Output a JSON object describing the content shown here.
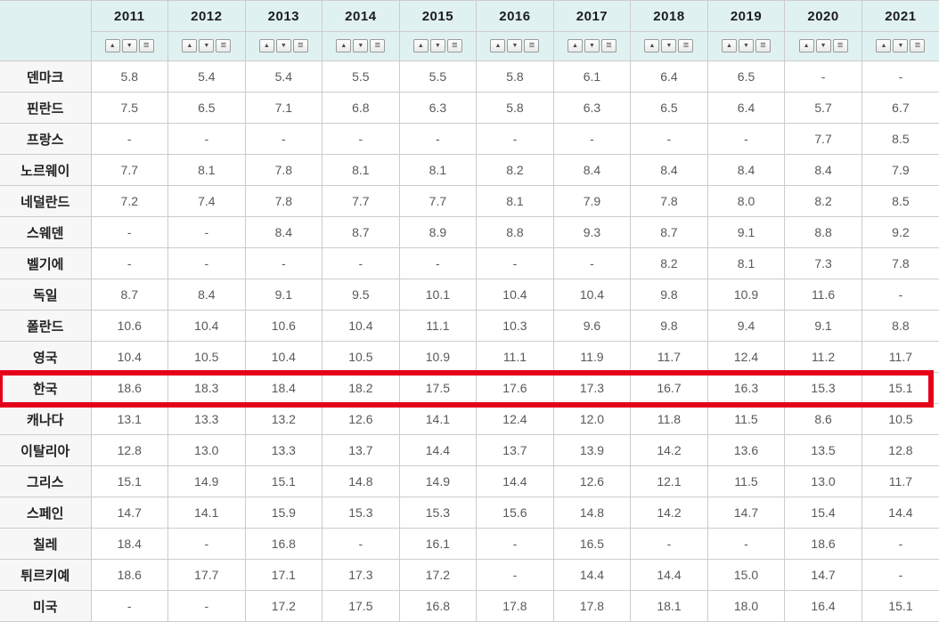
{
  "table": {
    "years": [
      "2011",
      "2012",
      "2013",
      "2014",
      "2015",
      "2016",
      "2017",
      "2018",
      "2019",
      "2020",
      "2021"
    ],
    "sort_controls": {
      "asc_icon": "▲",
      "desc_icon": "▼",
      "menu_icon": "≡"
    },
    "rows": [
      {
        "label": "덴마크",
        "values": [
          "5.8",
          "5.4",
          "5.4",
          "5.5",
          "5.5",
          "5.8",
          "6.1",
          "6.4",
          "6.5",
          "-",
          "-"
        ]
      },
      {
        "label": "핀란드",
        "values": [
          "7.5",
          "6.5",
          "7.1",
          "6.8",
          "6.3",
          "5.8",
          "6.3",
          "6.5",
          "6.4",
          "5.7",
          "6.7"
        ]
      },
      {
        "label": "프랑스",
        "values": [
          "-",
          "-",
          "-",
          "-",
          "-",
          "-",
          "-",
          "-",
          "-",
          "7.7",
          "8.5"
        ]
      },
      {
        "label": "노르웨이",
        "values": [
          "7.7",
          "8.1",
          "7.8",
          "8.1",
          "8.1",
          "8.2",
          "8.4",
          "8.4",
          "8.4",
          "8.4",
          "7.9"
        ]
      },
      {
        "label": "네덜란드",
        "values": [
          "7.2",
          "7.4",
          "7.8",
          "7.7",
          "7.7",
          "8.1",
          "7.9",
          "7.8",
          "8.0",
          "8.2",
          "8.5"
        ]
      },
      {
        "label": "스웨덴",
        "values": [
          "-",
          "-",
          "8.4",
          "8.7",
          "8.9",
          "8.8",
          "9.3",
          "8.7",
          "9.1",
          "8.8",
          "9.2"
        ]
      },
      {
        "label": "벨기에",
        "values": [
          "-",
          "-",
          "-",
          "-",
          "-",
          "-",
          "-",
          "8.2",
          "8.1",
          "7.3",
          "7.8"
        ]
      },
      {
        "label": "독일",
        "values": [
          "8.7",
          "8.4",
          "9.1",
          "9.5",
          "10.1",
          "10.4",
          "10.4",
          "9.8",
          "10.9",
          "11.6",
          "-"
        ]
      },
      {
        "label": "폴란드",
        "values": [
          "10.6",
          "10.4",
          "10.6",
          "10.4",
          "11.1",
          "10.3",
          "9.6",
          "9.8",
          "9.4",
          "9.1",
          "8.8"
        ]
      },
      {
        "label": "영국",
        "values": [
          "10.4",
          "10.5",
          "10.4",
          "10.5",
          "10.9",
          "11.1",
          "11.9",
          "11.7",
          "12.4",
          "11.2",
          "11.7"
        ]
      },
      {
        "label": "한국",
        "values": [
          "18.6",
          "18.3",
          "18.4",
          "18.2",
          "17.5",
          "17.6",
          "17.3",
          "16.7",
          "16.3",
          "15.3",
          "15.1"
        ]
      },
      {
        "label": "캐나다",
        "values": [
          "13.1",
          "13.3",
          "13.2",
          "12.6",
          "14.1",
          "12.4",
          "12.0",
          "11.8",
          "11.5",
          "8.6",
          "10.5"
        ]
      },
      {
        "label": "이탈리아",
        "values": [
          "12.8",
          "13.0",
          "13.3",
          "13.7",
          "14.4",
          "13.7",
          "13.9",
          "14.2",
          "13.6",
          "13.5",
          "12.8"
        ]
      },
      {
        "label": "그리스",
        "values": [
          "15.1",
          "14.9",
          "15.1",
          "14.8",
          "14.9",
          "14.4",
          "12.6",
          "12.1",
          "11.5",
          "13.0",
          "11.7"
        ]
      },
      {
        "label": "스페인",
        "values": [
          "14.7",
          "14.1",
          "15.9",
          "15.3",
          "15.3",
          "15.6",
          "14.8",
          "14.2",
          "14.7",
          "15.4",
          "14.4"
        ]
      },
      {
        "label": "칠레",
        "values": [
          "18.4",
          "-",
          "16.8",
          "-",
          "16.1",
          "-",
          "16.5",
          "-",
          "-",
          "18.6",
          "-"
        ]
      },
      {
        "label": "튀르키예",
        "values": [
          "18.6",
          "17.7",
          "17.1",
          "17.3",
          "17.2",
          "-",
          "14.4",
          "14.4",
          "15.0",
          "14.7",
          "-"
        ]
      },
      {
        "label": "미국",
        "values": [
          "-",
          "-",
          "17.2",
          "17.5",
          "16.8",
          "17.8",
          "17.8",
          "18.1",
          "18.0",
          "16.4",
          "15.1"
        ]
      }
    ]
  },
  "highlight": {
    "row_label": "한국",
    "border_color": "#e50019"
  },
  "colors": {
    "header_bg": "#e0f1f2",
    "label_cell_bg": "#f7f7f7",
    "grid_line": "#cccccc",
    "year_text": "#1c1c1c",
    "value_text": "#595959",
    "label_text": "#222222"
  }
}
